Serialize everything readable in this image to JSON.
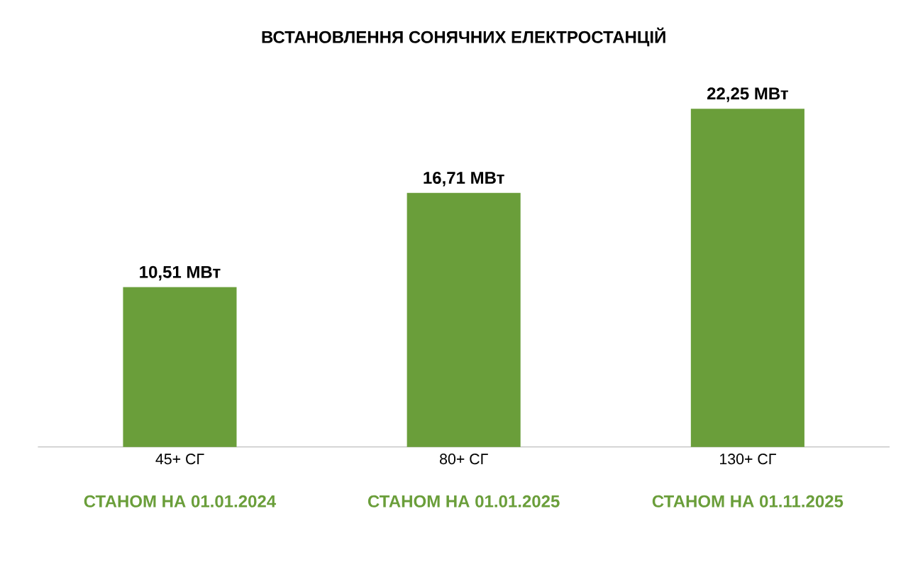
{
  "chart_data": {
    "type": "bar",
    "title": "ВСТАНОВЛЕННЯ СОНЯЧНИХ ЕЛЕКТРОСТАНЦІЙ",
    "categories": [
      "45+ СГ",
      "80+ СГ",
      "130+ СГ"
    ],
    "values": [
      10.51,
      16.71,
      22.25
    ],
    "value_labels": [
      "10,51 МВт",
      "16,71 МВт",
      "22,25 МВт"
    ],
    "color": "#6a9e3a",
    "annotations": [
      "СТАНОМ НА 01.01.2024",
      "СТАНОМ НА 01.01.2025",
      "СТАНОМ НА 01.11.2025"
    ]
  }
}
